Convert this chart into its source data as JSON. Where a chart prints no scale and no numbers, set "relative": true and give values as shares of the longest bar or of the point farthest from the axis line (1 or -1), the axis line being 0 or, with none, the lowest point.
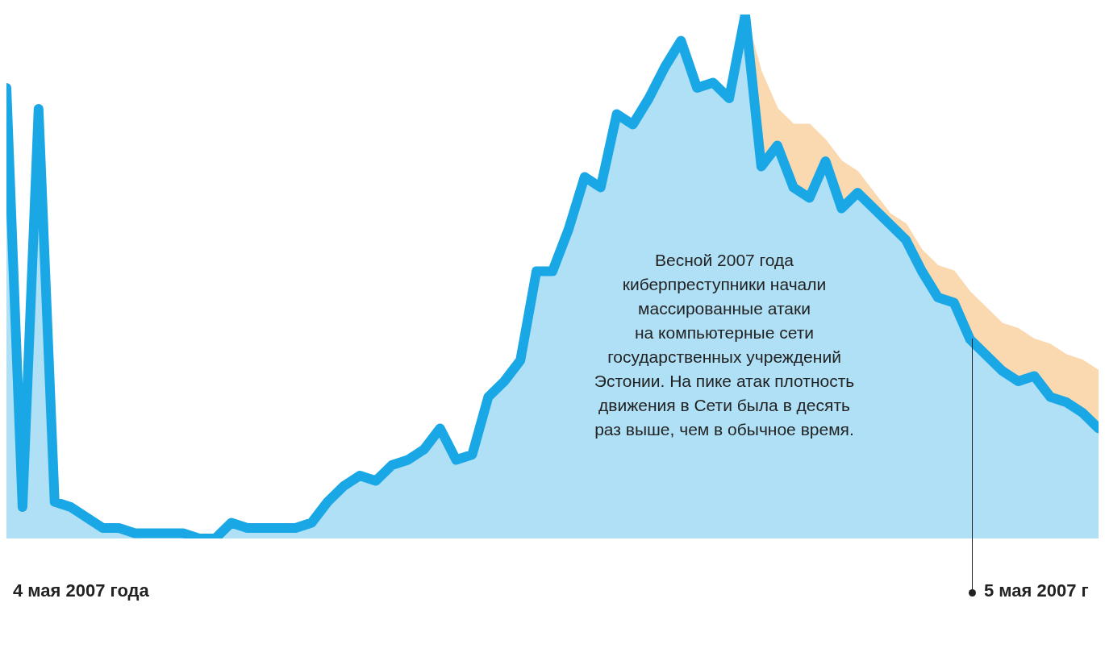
{
  "chart_data": {
    "type": "area",
    "relative": true,
    "legend": false,
    "line_style": "solid",
    "marker": "none",
    "categories": [
      null,
      null,
      null,
      null,
      null,
      null,
      null,
      null,
      null,
      null,
      null,
      null,
      null,
      null,
      null,
      null,
      null,
      null,
      null,
      null,
      null,
      null,
      null,
      null,
      null,
      null,
      null,
      null,
      null,
      null,
      null,
      null,
      null,
      null,
      null,
      null,
      null,
      null,
      null,
      null,
      null,
      null,
      null,
      null,
      null,
      null,
      null,
      null,
      null,
      null,
      null,
      null,
      null,
      null,
      null,
      null,
      null,
      null,
      null,
      null,
      null,
      null,
      null,
      null,
      null,
      null,
      null,
      null,
      null
    ],
    "series": [
      {
        "color": "#1aa7e6",
        "values": [
          0.86,
          0.06,
          0.82,
          0.07,
          0.06,
          0.04,
          0.02,
          0.02,
          0.01,
          0.01,
          0.01,
          0.01,
          0,
          0,
          0.03,
          0.02,
          0.02,
          0.02,
          0.02,
          0.03,
          0.07,
          0.1,
          0.12,
          0.11,
          0.14,
          0.15,
          0.17,
          0.21,
          0.15,
          0.16,
          0.27,
          0.3,
          0.34,
          0.51,
          0.51,
          0.59,
          0.69,
          0.67,
          0.81,
          0.79,
          0.84,
          0.9,
          0.95,
          0.86,
          0.87,
          0.84,
          1,
          0.71,
          0.75,
          0.67,
          0.65,
          0.72,
          0.63,
          0.66,
          0.63,
          0.6,
          0.57,
          0.51,
          0.46,
          0.45,
          0.38,
          0.35,
          0.32,
          0.3,
          0.31,
          0.27,
          0.26,
          0.24,
          0.21
        ]
      },
      {
        "color": "#fbd9b0",
        "values": [
          null,
          null,
          null,
          null,
          null,
          null,
          null,
          null,
          null,
          null,
          null,
          null,
          null,
          null,
          null,
          null,
          null,
          null,
          null,
          null,
          null,
          null,
          null,
          null,
          null,
          null,
          null,
          null,
          null,
          null,
          null,
          null,
          null,
          null,
          null,
          null,
          null,
          null,
          null,
          null,
          null,
          null,
          null,
          null,
          null,
          null,
          1,
          0.89,
          0.82,
          0.79,
          0.79,
          0.76,
          0.72,
          0.7,
          0.66,
          0.62,
          0.6,
          0.55,
          0.52,
          0.51,
          0.47,
          0.44,
          0.41,
          0.4,
          0.38,
          0.37,
          0.35,
          0.34,
          0.32
        ]
      }
    ],
    "annotations": [
      "Весной 2007 года\nкиберпреступники начали\nмассированные атаки\nна компьютерные сети\nгосударственных учреждений\nЭстонии. На пике атак плотность\nдвижения в Сети была в десять\nраз выше, чем в обычное время.",
      "4 мая 2007 года",
      "5 мая 2007 г"
    ]
  }
}
